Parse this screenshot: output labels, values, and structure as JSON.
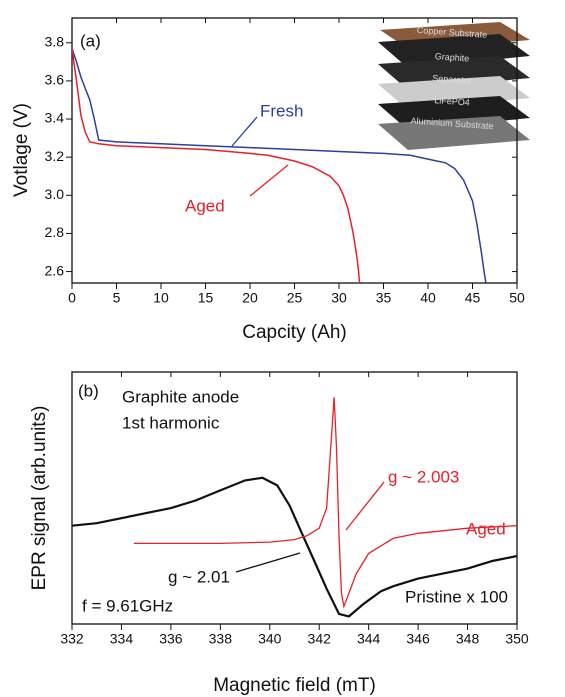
{
  "chart_data": [
    {
      "type": "line",
      "x_label": "Capcity (Ah)",
      "y_label": "Votlage (V)",
      "xlim": [
        0,
        50
      ],
      "ylim": [
        2.54,
        3.93
      ],
      "xticks": [
        0,
        5,
        10,
        15,
        20,
        25,
        30,
        35,
        40,
        45,
        50
      ],
      "yticks": [
        2.6,
        2.8,
        {
          "value": 3,
          "label": "3.0"
        },
        3.2,
        3.4,
        3.6,
        3.8
      ],
      "annotations": [
        "(a)",
        "Fresh",
        "Aged"
      ],
      "inset_labels": [
        "Copper Substrate",
        "Graphite",
        "Separator",
        "LiFePO4",
        "Aluminium Substrate"
      ],
      "series": [
        {
          "name": "Fresh",
          "color": "#2b3f9e",
          "x": [
            0,
            0.5,
            1,
            1.5,
            2,
            2.5,
            3,
            5,
            10,
            15,
            20,
            25,
            30,
            35,
            38,
            40,
            42,
            43,
            44,
            45,
            45.5,
            46,
            46.3,
            46.5
          ],
          "values": [
            3.77,
            3.7,
            3.62,
            3.56,
            3.5,
            3.4,
            3.29,
            3.28,
            3.27,
            3.26,
            3.25,
            3.24,
            3.23,
            3.22,
            3.21,
            3.19,
            3.17,
            3.14,
            3.08,
            2.97,
            2.85,
            2.7,
            2.6,
            2.54
          ]
        },
        {
          "name": "Aged",
          "color": "#e8202a",
          "x": [
            0,
            0.5,
            1,
            1.5,
            2,
            3,
            5,
            10,
            15,
            20,
            22,
            25,
            27,
            29,
            30,
            30.5,
            31,
            31.6,
            32,
            32.2,
            32.3
          ],
          "values": [
            3.77,
            3.6,
            3.42,
            3.33,
            3.28,
            3.27,
            3.26,
            3.25,
            3.24,
            3.22,
            3.21,
            3.18,
            3.15,
            3.1,
            3.05,
            3.0,
            2.93,
            2.8,
            2.68,
            2.6,
            2.54
          ]
        }
      ]
    },
    {
      "type": "line",
      "x_label": "Magnetic field (mT)",
      "y_label": "EPR signal (arb.units)",
      "xlim": [
        332,
        350
      ],
      "ylim": [
        0,
        100
      ],
      "xticks": [
        332,
        334,
        336,
        338,
        340,
        342,
        344,
        346,
        348,
        350
      ],
      "annotations": [
        "(b)",
        "Graphite anode",
        "1st harmonic",
        "g ~ 2.003",
        "Aged",
        "g ~ 2.01",
        "Pristine x 100",
        "f = 9.61GHz"
      ],
      "series": [
        {
          "name": "Pristine x 100",
          "color": "#111111",
          "x": [
            332,
            333,
            334,
            335,
            336,
            337,
            338,
            339,
            339.7,
            340.3,
            340.8,
            341.3,
            341.8,
            342.3,
            342.8,
            343.2,
            343.8,
            344.5,
            345,
            346,
            347,
            348,
            349,
            350
          ],
          "values": [
            39,
            40,
            42,
            44,
            46,
            49,
            53,
            57,
            58,
            55,
            47,
            36,
            25,
            14,
            4,
            3,
            8,
            13,
            15,
            18,
            20,
            22,
            25,
            27
          ]
        },
        {
          "name": "Aged",
          "color": "#e8202a",
          "x": [
            334.5,
            336,
            338,
            340,
            341,
            341.5,
            342,
            342.3,
            342.5,
            342.6,
            342.7,
            342.8,
            342.9,
            343,
            343.5,
            344,
            345,
            346,
            347,
            348,
            350
          ],
          "values": [
            32,
            32,
            32,
            32.5,
            33.5,
            35,
            38,
            46,
            75,
            90,
            70,
            35,
            12,
            7,
            20,
            28,
            34,
            36,
            37,
            38,
            39
          ]
        }
      ]
    }
  ]
}
